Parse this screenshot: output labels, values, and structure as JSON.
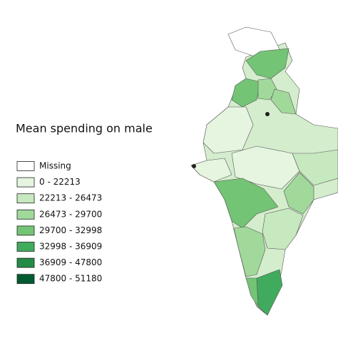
{
  "legend": {
    "title": "Mean spending on male",
    "items": [
      {
        "label": "Missing",
        "color": "#ffffff"
      },
      {
        "label": "0 - 22213",
        "color": "#e5f5e0"
      },
      {
        "label": "22213 - 26473",
        "color": "#c7e9c0"
      },
      {
        "label": "26473 - 29700",
        "color": "#a1d99b"
      },
      {
        "label": "29700 - 32998",
        "color": "#74c476"
      },
      {
        "label": "32998 - 36909",
        "color": "#41ab5d"
      },
      {
        "label": "36909 - 47800",
        "color": "#238b45"
      },
      {
        "label": "47800 - 51180",
        "color": "#005a32"
      }
    ]
  }
}
